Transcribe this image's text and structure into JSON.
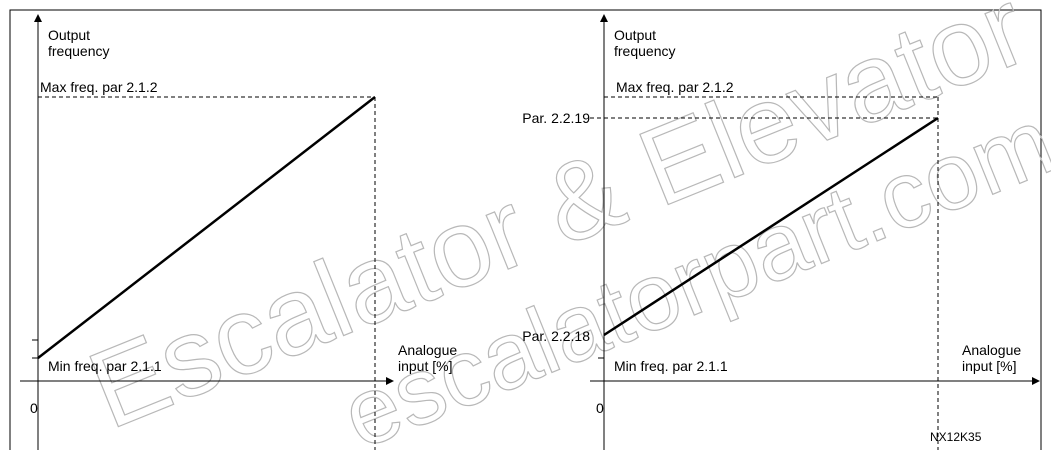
{
  "left_chart": {
    "y_label": [
      "Output",
      "frequency"
    ],
    "max_label": "Max freq. par 2.1.2",
    "min_label": "Min freq. par 2.1.1",
    "x_label": [
      "Analogue",
      "input [%]"
    ],
    "origin": "0"
  },
  "right_chart": {
    "y_label": [
      "Output",
      "frequency"
    ],
    "max_label": "Max freq. par 2.1.2",
    "high_label": "Par. 2.2.19",
    "low_label": "Par. 2.2.18",
    "min_label": "Min freq. par 2.1.1",
    "x_label": [
      "Analogue",
      "input [%]"
    ],
    "origin": "0"
  },
  "figure_id": "NX12K35",
  "watermark": [
    "Escalator & Elevator Parts",
    "escalatorpart.com"
  ]
}
